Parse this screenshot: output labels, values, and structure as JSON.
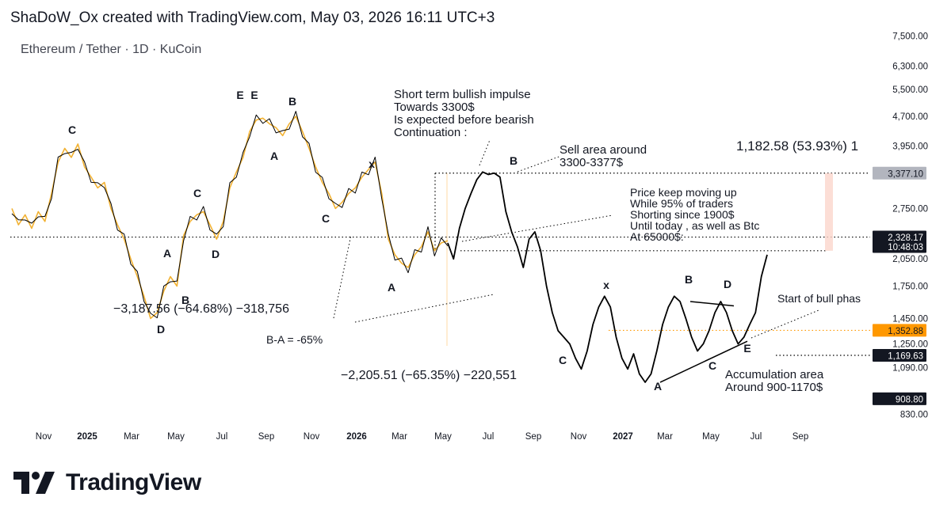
{
  "header": {
    "attribution": "ShaDoW_Ox created with TradingView.com, May 03, 2026 16:11 UTC+3"
  },
  "symbol": {
    "title": "Ethereum / Tether · 1D · KuCoin"
  },
  "logo": {
    "text": "TradingView",
    "icon": "tradingview-logo-icon"
  },
  "colors": {
    "price_line": "#000000",
    "price_line_2025": "#f2b233",
    "grid_dotted": "#000000",
    "orange_level": "#ff9800",
    "label_dark": "#131722",
    "label_grey": "#b2b5be",
    "range_fill": "#fbd6cc"
  },
  "chart_data": {
    "type": "line",
    "log_scale": true,
    "ylim": [
      780,
      7800
    ],
    "x_ticks": [
      "Nov",
      "2025",
      "Mar",
      "May",
      "Jul",
      "Sep",
      "Nov",
      "2026",
      "Mar",
      "May",
      "Jul",
      "Sep",
      "Nov",
      "2027",
      "Mar",
      "May",
      "Jul",
      "Sep"
    ],
    "y_ticks": [
      "7,500.00",
      "6,300.00",
      "5,500.00",
      "4,700.00",
      "3,950.00",
      "2,750.00",
      "2,050.00",
      "1,750.00",
      "1,450.00",
      "1,250.00",
      "1,090.00",
      "830.00"
    ],
    "price_labels": [
      {
        "value": "3,377.10",
        "style": "grey"
      },
      {
        "value": "2,328.17",
        "sub": "10:48:03",
        "style": "dark"
      },
      {
        "value": "1,352.88",
        "style": "orange"
      },
      {
        "value": "1,169.63",
        "style": "dark"
      },
      {
        "value": "908.80",
        "style": "dark"
      }
    ],
    "series": [
      {
        "values": [
          2750,
          2500,
          2650,
          2450,
          2700,
          2550,
          3000,
          3600,
          3900,
          3700,
          4000,
          3500,
          3300,
          3100,
          3200,
          2750,
          2500,
          2300,
          2050,
          1850,
          1650,
          1450,
          1500,
          1700,
          1850,
          1750,
          2350,
          2550,
          2650,
          2700,
          2500,
          2300,
          2550,
          3100,
          3400,
          3700,
          4300,
          4600,
          4650,
          4500,
          4400,
          4200,
          4500,
          4700,
          4300,
          3900,
          3500,
          3200,
          3000,
          2750,
          2850,
          3000,
          3100,
          3300,
          3450,
          3600,
          3000,
          2300,
          2100,
          2000,
          1950,
          2100,
          2200,
          2400,
          2150,
          2250,
          2280
        ]
      },
      {
        "values": [
          2250,
          2050,
          2450,
          2750,
          3000,
          3250,
          3400,
          3350,
          3377,
          3300,
          2700,
          2400,
          2200,
          1950,
          2300,
          2400,
          2150,
          1750,
          1500,
          1350,
          1300,
          1250,
          1150,
          1080,
          1200,
          1400,
          1550,
          1650,
          1550,
          1300,
          1150,
          1080,
          1180,
          1050,
          1000,
          1050,
          1200,
          1400,
          1550,
          1650,
          1600,
          1450,
          1300,
          1200,
          1250,
          1350,
          1500,
          1600,
          1500,
          1350,
          1250,
          1300,
          1400,
          1500,
          1850,
          2100
        ]
      }
    ],
    "annotations": [
      "Short term bullish impulse",
      "Towards 3300$",
      "Is expected before bearish",
      "Continuation :",
      "Sell area around",
      "3300-3377$",
      "Price keep moving up",
      "While 95% of traders",
      "Shorting since 1900$",
      "Until today , as well as Btc",
      "At 65000$:",
      "1,182.58 (53.93%) 1",
      "−3,187.56 (−64.68%) −318,756",
      "B-A = -65%",
      "−2,205.51 (−65.35%) −220,551",
      "Start of bull phas",
      "Accumulation area",
      "Around 900-1170$"
    ],
    "wave_labels": [
      "C",
      "A",
      "B",
      "D",
      "C",
      "D",
      "E",
      "E",
      "B",
      "A",
      "C",
      "x",
      "A",
      "B",
      "C",
      "x",
      "A",
      "B",
      "C",
      "D",
      "E"
    ]
  }
}
